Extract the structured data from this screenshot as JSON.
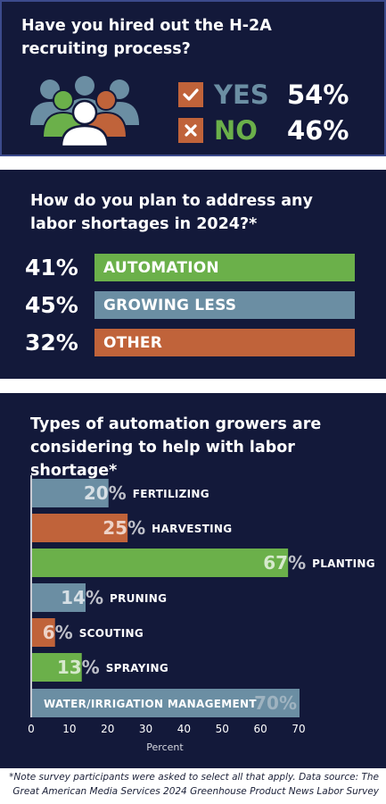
{
  "hire_panel": {
    "title": "Have you hired out the H-2A recruiting process?",
    "yes_label": "YES",
    "yes_pct": "54%",
    "no_label": "NO",
    "no_pct": "46%",
    "yes_icon": "check-icon",
    "no_icon": "x-icon",
    "people_icon": "people-group-icon",
    "colors": {
      "yes": "#6b8ea3",
      "no": "#6bb04a",
      "check_box": "#c0633a",
      "x_box": "#c0633a"
    }
  },
  "plan_panel": {
    "title": "How do you plan to address any labor shortages in 2024?*",
    "rows": [
      {
        "pct": "41%",
        "label": "AUTOMATION",
        "color": "#6bb04a"
      },
      {
        "pct": "45%",
        "label": "GROWING LESS",
        "color": "#6b8ea3"
      },
      {
        "pct": "32%",
        "label": "OTHER",
        "color": "#c0633a"
      }
    ]
  },
  "automation_panel": {
    "title": "Types of automation growers are considering to help with labor shortage*"
  },
  "chart_data": {
    "type": "bar",
    "orientation": "horizontal",
    "title": "Types of automation growers are considering to help with labor shortage*",
    "xlabel": "Percent",
    "ylabel": "",
    "xlim": [
      0,
      70
    ],
    "x_ticks": [
      "0",
      "10",
      "20",
      "30",
      "40",
      "50",
      "60",
      "70"
    ],
    "grid": false,
    "categories": [
      "FERTILIZING",
      "HARVESTING",
      "PLANTING",
      "PRUNING",
      "SCOUTING",
      "SPRAYING",
      "WATER/IRRIGATION MANAGEMENT"
    ],
    "values": [
      20,
      25,
      67,
      14,
      6,
      13,
      70
    ],
    "value_labels": [
      "20%",
      "25%",
      "67%",
      "14%",
      "6%",
      "13%",
      "70%"
    ],
    "colors": [
      "#6b8ea3",
      "#c0633a",
      "#6bb04a",
      "#6b8ea3",
      "#c0633a",
      "#6bb04a",
      "#6b8ea3"
    ]
  },
  "footnote": "*Note survey participants were asked to select all that apply. Data source: The Great American Media Services 2024 Greenhouse Product News Labor Survey"
}
